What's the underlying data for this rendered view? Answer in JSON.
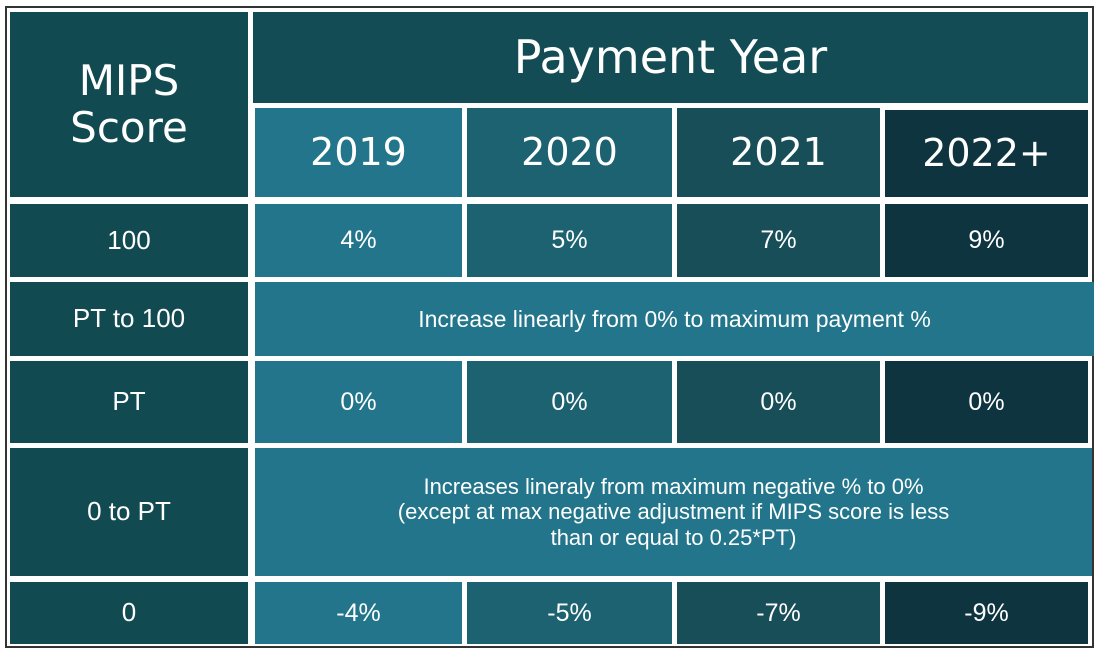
{
  "header": {
    "corner_line1": "MIPS",
    "corner_line2": "Score",
    "title": "Payment Year",
    "years": [
      "2019",
      "2020",
      "2021",
      "2022+"
    ]
  },
  "rows": [
    {
      "label": "100",
      "values": [
        "4%",
        "5%",
        "7%",
        "9%"
      ]
    },
    {
      "label": "PT to 100",
      "span": "Increase linearly from 0% to maximum payment %"
    },
    {
      "label": "PT",
      "values": [
        "0%",
        "0%",
        "0%",
        "0%"
      ]
    },
    {
      "label": "0 to PT",
      "span_lines": [
        "Increases lineraly from maximum negative % to 0%",
        "(except at max negative adjustment if MIPS score is less",
        "than or equal to 0.25*PT)"
      ]
    },
    {
      "label": "0",
      "values": [
        "-4%",
        "-5%",
        "-7%",
        "-9%"
      ]
    }
  ],
  "colors": {
    "label_bg": "#124a52",
    "col_2019": "#22758a",
    "col_2020": "#1c6270",
    "col_2021": "#174e58",
    "col_2022": "#0e3440",
    "text": "#ffffff"
  }
}
